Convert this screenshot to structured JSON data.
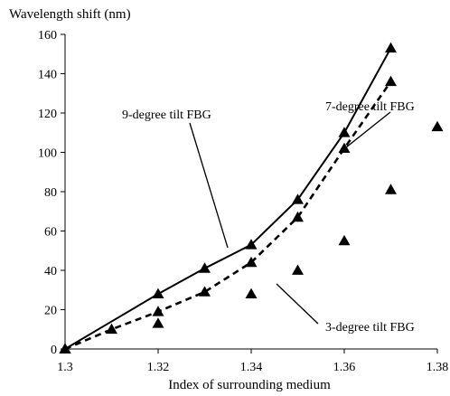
{
  "chart_data": {
    "type": "scatter",
    "title": "",
    "ylabel": "Wavelength shift (nm)",
    "xlabel": "Index of surrounding medium",
    "xlim": [
      1.3,
      1.38
    ],
    "ylim": [
      0,
      160
    ],
    "xticks": [
      "1.3",
      "1.32",
      "1.34",
      "1.36",
      "1.38"
    ],
    "yticks": [
      "0",
      "20",
      "40",
      "60",
      "80",
      "100",
      "120",
      "140",
      "160"
    ],
    "xtick_values": [
      1.3,
      1.32,
      1.34,
      1.36,
      1.38
    ],
    "ytick_values": [
      0,
      20,
      40,
      60,
      80,
      100,
      120,
      140,
      160
    ],
    "grid": false,
    "legend": "none",
    "series": [
      {
        "label_text": "9-degree tilt FBG",
        "line_style": "solid",
        "color": "#000000",
        "points": [
          {
            "x": 1.3,
            "y": 0
          },
          {
            "x": 1.32,
            "y": 28
          },
          {
            "x": 1.33,
            "y": 41
          },
          {
            "x": 1.34,
            "y": 53
          },
          {
            "x": 1.35,
            "y": 76
          },
          {
            "x": 1.36,
            "y": 110
          },
          {
            "x": 1.37,
            "y": 153
          }
        ]
      },
      {
        "label_text": "7-degree tilt FBG",
        "line_style": "dashed",
        "color": "#000000",
        "points": [
          {
            "x": 1.3,
            "y": 0
          },
          {
            "x": 1.31,
            "y": 10
          },
          {
            "x": 1.32,
            "y": 19
          },
          {
            "x": 1.33,
            "y": 29
          },
          {
            "x": 1.34,
            "y": 44
          },
          {
            "x": 1.35,
            "y": 67
          },
          {
            "x": 1.36,
            "y": 102
          },
          {
            "x": 1.37,
            "y": 136
          }
        ]
      },
      {
        "label_text": "3-degree tilt FBG",
        "line_style": "none",
        "color": "#000000",
        "points": [
          {
            "x": 1.3,
            "y": 0
          },
          {
            "x": 1.32,
            "y": 13
          },
          {
            "x": 1.34,
            "y": 28
          },
          {
            "x": 1.35,
            "y": 40
          },
          {
            "x": 1.36,
            "y": 55
          },
          {
            "x": 1.37,
            "y": 81
          },
          {
            "x": 1.38,
            "y": 113
          }
        ]
      }
    ]
  }
}
